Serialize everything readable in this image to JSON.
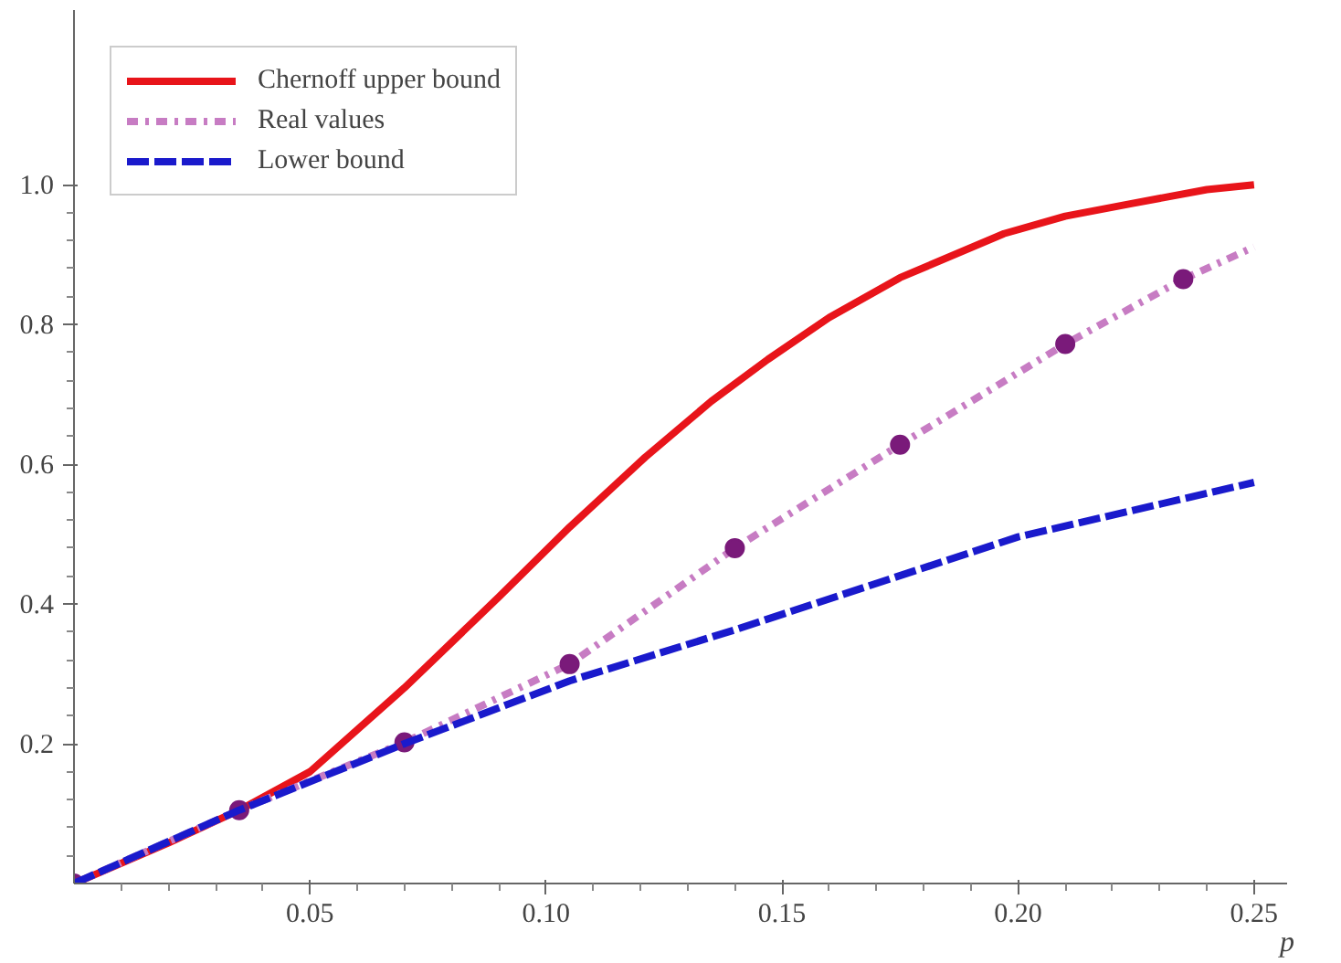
{
  "chart_data": {
    "type": "line",
    "xlabel": "p",
    "xlim": [
      0,
      0.257
    ],
    "ylim": [
      0,
      1.25
    ],
    "xticks": [
      0.05,
      {
        "value": 0.1,
        "label": "0.10"
      },
      0.15,
      {
        "value": 0.2,
        "label": "0.20"
      },
      0.25
    ],
    "yticks": [
      0.2,
      0.4,
      0.6,
      0.8,
      {
        "value": 1.0,
        "label": "1.0"
      }
    ],
    "grid": false,
    "legend": "top left",
    "series": [
      {
        "name": "Chernoff upper bound",
        "color": "#e8141a",
        "line_style": "solid",
        "x": [
          0,
          0.02,
          0.035,
          0.05,
          0.07,
          0.09,
          0.105,
          0.121,
          0.135,
          0.147,
          0.16,
          0.175,
          0.197,
          0.21,
          0.224,
          0.24,
          0.25
        ],
        "values": [
          0,
          0.058,
          0.105,
          0.16,
          0.28,
          0.41,
          0.51,
          0.61,
          0.69,
          0.75,
          0.81,
          0.867,
          0.93,
          0.955,
          0.973,
          0.993,
          1.0
        ]
      },
      {
        "name": "Real values",
        "color": "#c77cc3",
        "line_style": "dashdot",
        "x": [
          0,
          0.035,
          0.07,
          0.105,
          0.14,
          0.175,
          0.21,
          0.235,
          0.25
        ],
        "values": [
          0,
          0.105,
          0.202,
          0.314,
          0.48,
          0.628,
          0.772,
          0.865,
          0.911
        ]
      },
      {
        "type": "scatter",
        "marker": "circle",
        "color": "#7a1a7a",
        "x": [
          0,
          0.035,
          0.07,
          0.105,
          0.14,
          0.175,
          0.21,
          0.235
        ],
        "values": [
          0,
          0.105,
          0.202,
          0.314,
          0.48,
          0.628,
          0.772,
          0.865
        ]
      },
      {
        "name": "Lower bound",
        "color": "#1a1acc",
        "line_style": "dashed",
        "x": [
          0,
          0.035,
          0.07,
          0.105,
          0.14,
          0.2,
          0.25
        ],
        "values": [
          0,
          0.105,
          0.2,
          0.29,
          0.363,
          0.496,
          0.574
        ]
      }
    ]
  }
}
